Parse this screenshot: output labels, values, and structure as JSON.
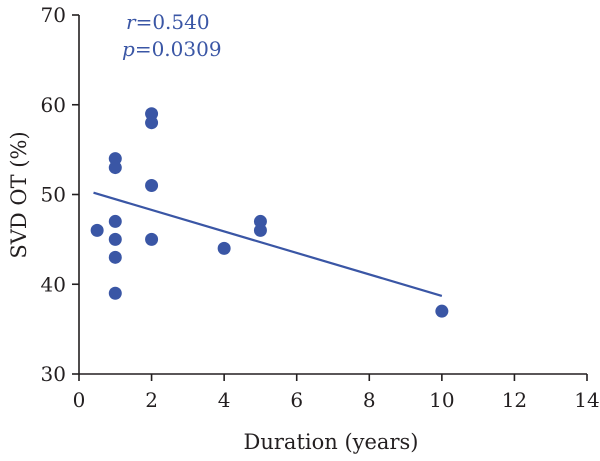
{
  "chart_data": {
    "type": "scatter",
    "xlabel": "Duration (years)",
    "ylabel": "SVD OT (%)",
    "xlim": [
      0,
      14
    ],
    "ylim": [
      30,
      70
    ],
    "x_ticks": [
      "0",
      "2",
      "4",
      "6",
      "8",
      "10",
      "12",
      "14"
    ],
    "y_ticks": [
      "30",
      "40",
      "50",
      "60",
      "70"
    ],
    "grid": false,
    "points": [
      {
        "x": 0.5,
        "y": 46
      },
      {
        "x": 1,
        "y": 54
      },
      {
        "x": 1,
        "y": 53
      },
      {
        "x": 1,
        "y": 47
      },
      {
        "x": 1,
        "y": 45
      },
      {
        "x": 1,
        "y": 43
      },
      {
        "x": 1,
        "y": 39
      },
      {
        "x": 2,
        "y": 59
      },
      {
        "x": 2,
        "y": 58
      },
      {
        "x": 2,
        "y": 51
      },
      {
        "x": 2,
        "y": 45
      },
      {
        "x": 4,
        "y": 44
      },
      {
        "x": 5,
        "y": 47
      },
      {
        "x": 5,
        "y": 46
      },
      {
        "x": 10,
        "y": 37
      }
    ],
    "regression_line": {
      "x": [
        0.4,
        10
      ],
      "y": [
        50.2,
        38.7
      ]
    },
    "annotation": {
      "r_symbol": "r",
      "r_value": "=0.540",
      "p_symbol": "p",
      "p_value": "=0.0309"
    },
    "colors": {
      "points": "#3a56a5",
      "line": "#3a56a5",
      "axis": "#231f20",
      "annotation": "#3a56a5"
    }
  }
}
